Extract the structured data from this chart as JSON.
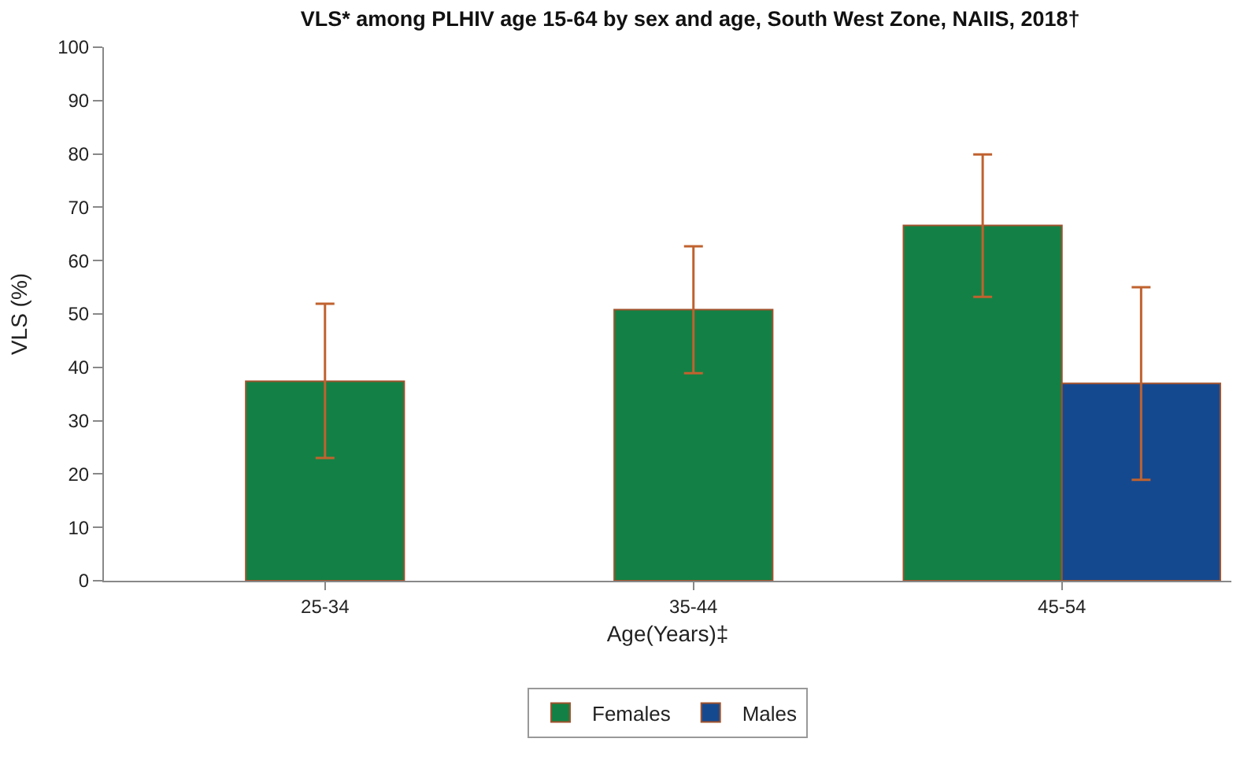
{
  "chart_data": {
    "type": "bar",
    "title": "VLS* among PLHIV age 15-64 by sex and age, South West Zone, NAIIS, 2018†",
    "xlabel": "Age(Years)‡",
    "ylabel": "VLS (%)",
    "categories": [
      "25-34",
      "35-44",
      "45-54"
    ],
    "series": [
      {
        "name": "Females",
        "color": "#138145",
        "values": [
          37.4,
          50.8,
          66.6
        ],
        "errors": [
          [
            23.0,
            51.9
          ],
          [
            38.9,
            62.7
          ],
          [
            53.2,
            79.9
          ]
        ]
      },
      {
        "name": "Males",
        "color": "#15498f",
        "values": [
          null,
          null,
          37.0
        ],
        "errors": [
          null,
          null,
          [
            18.9,
            55.0
          ]
        ]
      }
    ],
    "ylim": [
      0,
      100
    ],
    "yticks": [
      0,
      10,
      20,
      30,
      40,
      50,
      60,
      70,
      80,
      90,
      100
    ],
    "legend": "bottom"
  }
}
